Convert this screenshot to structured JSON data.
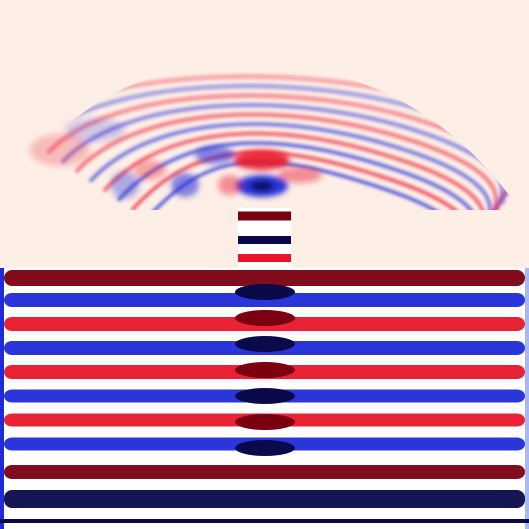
{
  "figure": {
    "kind": "wave-field-simulation",
    "colormap": "seismic",
    "colors": {
      "background": "#fdeee6",
      "positive_deep": "#7a0010",
      "positive": "#e8162a",
      "positive_light": "#f7b1a8",
      "neutral": "#fdeee6",
      "negative_light": "#a9b7f4",
      "negative": "#1f2bd8",
      "negative_deep": "#0a0a4a"
    }
  }
}
